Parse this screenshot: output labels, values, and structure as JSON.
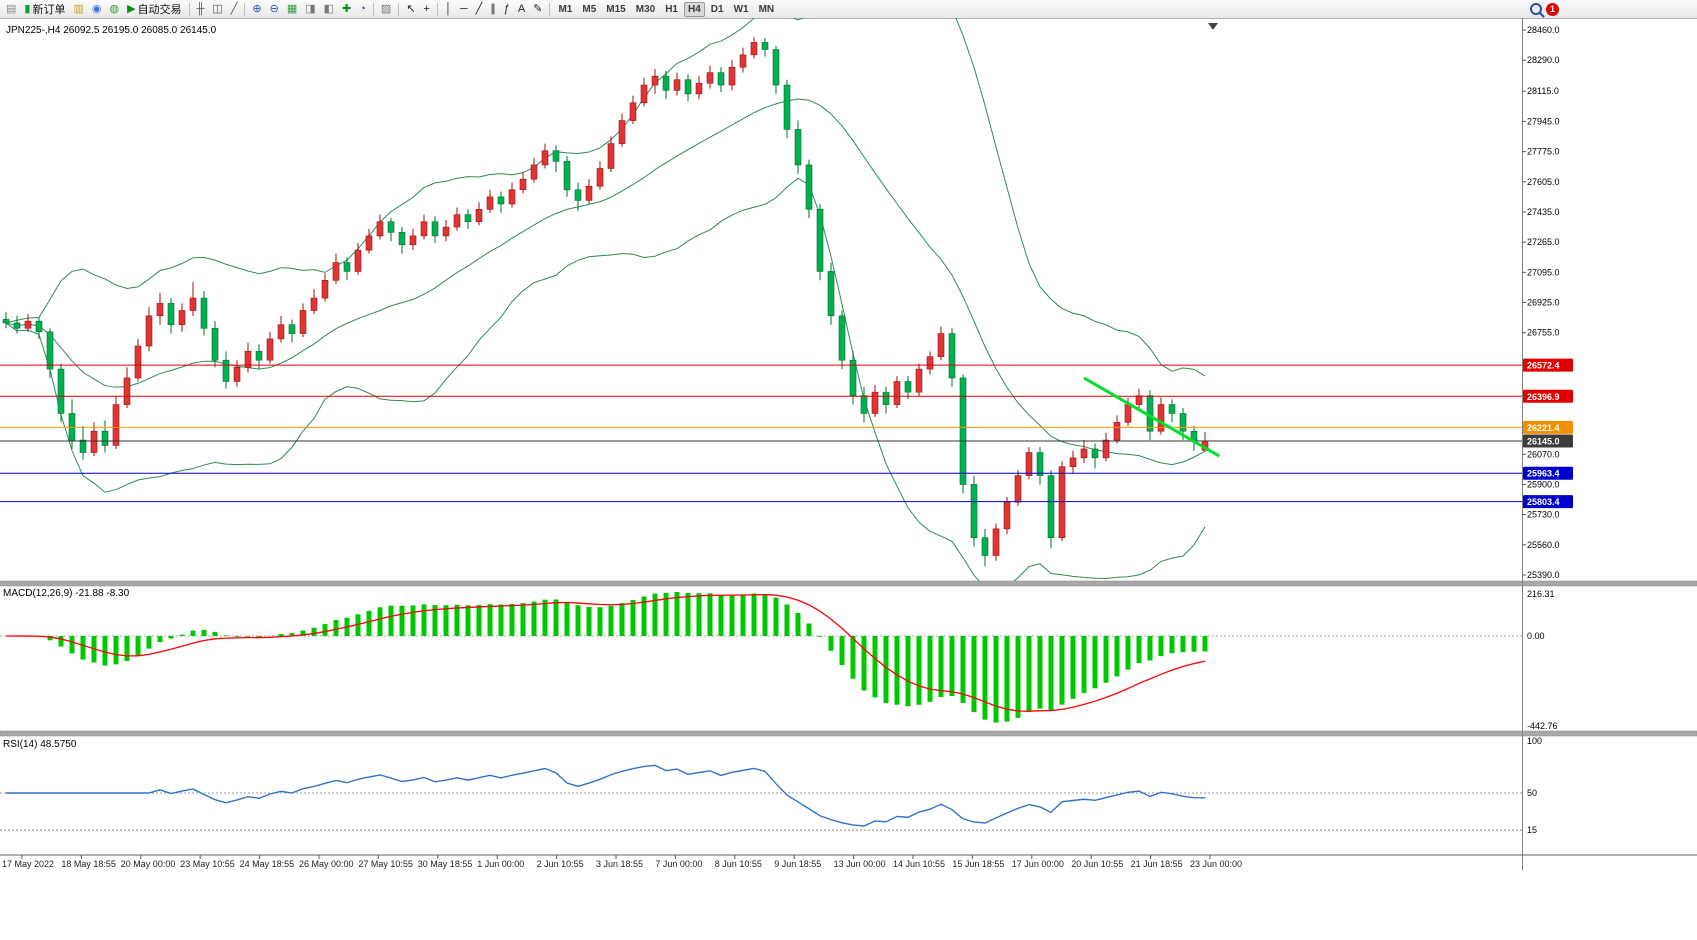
{
  "toolbar": {
    "items": [
      {
        "name": "profiles-button",
        "icon_name": "profiles-icon",
        "glyph": "▤",
        "color": "#8a8a8a"
      },
      {
        "name": "new-order-button",
        "icon_name": "new-order-icon",
        "glyph": "▮",
        "color": "#0aa03c",
        "label": "新订单"
      },
      {
        "name": "depth-of-market-button",
        "icon_name": "book-icon",
        "glyph": "▥",
        "color": "#c8a020"
      },
      {
        "name": "accounts-button",
        "icon_name": "account-icon",
        "glyph": "◉",
        "color": "#3a6fd8"
      },
      {
        "name": "refresh-button",
        "icon_name": "refresh-icon",
        "glyph": "◍",
        "color": "#2fa32f"
      },
      {
        "name": "auto-trading-button",
        "icon_name": "play-icon",
        "glyph": "▶",
        "color": "#0b8f0b",
        "label": "自动交易"
      },
      {
        "sep": true
      },
      {
        "name": "bar-chart-button",
        "icon_name": "bar-chart-icon",
        "glyph": "╫",
        "color": "#555555"
      },
      {
        "name": "candle-chart-button",
        "icon_name": "candle-chart-icon",
        "glyph": "◫",
        "color": "#555555"
      },
      {
        "name": "line-chart-button",
        "icon_name": "line-chart-icon",
        "glyph": "╱",
        "color": "#555555"
      },
      {
        "sep": true
      },
      {
        "name": "zoom-in-button",
        "icon_name": "zoom-in-icon",
        "glyph": "⊕",
        "color": "#2c4f9e"
      },
      {
        "name": "zoom-out-button",
        "icon_name": "zoom-out-icon",
        "glyph": "⊖",
        "color": "#2c4f9e"
      },
      {
        "name": "tile-windows-button",
        "icon_name": "tile-windows-icon",
        "glyph": "▦",
        "color": "#2f9e3f"
      },
      {
        "name": "auto-arrange-button",
        "icon_name": "arrange-icon",
        "glyph": "◨",
        "color": "#777777"
      },
      {
        "name": "chart-shift-button",
        "icon_name": "shift-icon",
        "glyph": "◧",
        "color": "#777777"
      },
      {
        "name": "add-indicator-button",
        "icon_name": "indicator-plus-icon",
        "glyph": "✚",
        "color": "#138a13"
      },
      {
        "name": "period-button",
        "icon_name": "clock-icon",
        "glyph": "◔",
        "color": "#2c4f9e"
      },
      {
        "sep": true
      },
      {
        "name": "templates-button",
        "icon_name": "template-icon",
        "glyph": "▨",
        "color": "#777777"
      },
      {
        "sep": true
      },
      {
        "name": "cursor-button",
        "icon_name": "cursor-icon",
        "glyph": "↖",
        "color": "#222222"
      },
      {
        "name": "crosshair-button",
        "icon_name": "crosshair-icon",
        "glyph": "+",
        "color": "#222222"
      },
      {
        "sep": true
      },
      {
        "name": "vertical-line-button",
        "icon_name": "vertical-line-icon",
        "glyph": "│",
        "color": "#222222"
      },
      {
        "name": "horizontal-line-button",
        "icon_name": "horizontal-line-icon",
        "glyph": "─",
        "color": "#222222"
      },
      {
        "name": "trendline-button",
        "icon_name": "trendline-icon",
        "glyph": "╱",
        "color": "#222222"
      },
      {
        "name": "channel-button",
        "icon_name": "channel-icon",
        "glyph": "∥",
        "color": "#222222"
      },
      {
        "name": "fibonacci-button",
        "icon_name": "fibonacci-icon",
        "glyph": "ƒ",
        "color": "#222222"
      },
      {
        "name": "text-button",
        "icon_name": "text-icon",
        "glyph": "A",
        "color": "#222222"
      },
      {
        "name": "arrows-button",
        "icon_name": "arrow-tools-icon",
        "glyph": "✎",
        "color": "#222222"
      },
      {
        "sep": true
      }
    ],
    "timeframes": [
      {
        "label": "M1"
      },
      {
        "label": "M5"
      },
      {
        "label": "M15"
      },
      {
        "label": "M30"
      },
      {
        "label": "H1"
      },
      {
        "label": "H4",
        "active": true
      },
      {
        "label": "D1"
      },
      {
        "label": "W1"
      },
      {
        "label": "MN"
      }
    ],
    "badge": "1"
  },
  "chart": {
    "symbol_header": "JPN225-,H4  26092.5 26195.0 26085.0 26145.0"
  },
  "macd": {
    "header": "MACD(12,26,9) -21.88 -8.30"
  },
  "rsi": {
    "header": "RSI(14) 48.5750"
  },
  "chart_data": {
    "type": "candlestick",
    "symbol": "JPN225-",
    "timeframe": "H4",
    "ohlc_current": {
      "open": "26092.5",
      "high": "26195.0",
      "low": "26085.0",
      "close": "26145.0"
    },
    "up_color": "#e03535",
    "up_border": "#9c1010",
    "down_color": "#00b050",
    "down_border": "#00702f",
    "price_axis": {
      "min": 25390,
      "max": 28460,
      "tick_labels": [
        "28460.0",
        "28290.0",
        "28115.0",
        "27945.0",
        "27775.0",
        "27605.0",
        "27435.0",
        "27265.0",
        "27095.0",
        "26925.0",
        "26755.0",
        "26070.0",
        "25900.0",
        "25730.0",
        "25560.0",
        "25390.0"
      ]
    },
    "levels": [
      {
        "price": 26572.4,
        "label": "26572.4",
        "color": "#e00000",
        "label_bg": "#e00000"
      },
      {
        "price": 26396.9,
        "label": "26396.9",
        "color": "#e00000",
        "label_bg": "#e00000"
      },
      {
        "price": 26221.4,
        "label": "26221.4",
        "color": "#ff9900",
        "label_bg": "#f09000"
      },
      {
        "price": 26145.0,
        "label": "26145.0",
        "color": "#333333",
        "label_bg": "#3c3c3c"
      },
      {
        "price": 25963.4,
        "label": "25963.4",
        "color": "#0000cc",
        "label_bg": "#0000cc"
      },
      {
        "price": 25803.4,
        "label": "25803.4",
        "color": "#0000cc",
        "label_bg": "#0000cc"
      }
    ],
    "trendline": {
      "from_index": 98,
      "from_price": 26500,
      "to_index": 110.3,
      "to_price": 26060,
      "color": "#00e02a",
      "width": 3
    },
    "bollinger": {
      "period": 20,
      "deviation": 2,
      "color": "#2e8b57"
    },
    "macd": {
      "params": "12,26,9",
      "value": "-21.88",
      "signal_value": "-8.30",
      "axis_labels": [
        "216.31",
        "0.00",
        "-442.76"
      ],
      "histogram_color": "#00c800",
      "signal_color": "#ff0000"
    },
    "rsi": {
      "period": 14,
      "value": "48.5750",
      "axis_labels": [
        "100",
        "50",
        "15"
      ],
      "color": "#2f74c9"
    },
    "time_labels": [
      "17 May 2022",
      "18 May 18:55",
      "20 May 00:00",
      "23 May 10:55",
      "24 May 18:55",
      "26 May 00:00",
      "27 May 10:55",
      "30 May 18:55",
      "1 Jun 00:00",
      "2 Jun 10:55",
      "3 Jun 18:55",
      "7 Jun 00:00",
      "8 Jun 10:55",
      "9 Jun 18:55",
      "13 Jun 00:00",
      "14 Jun 10:55",
      "15 Jun 18:55",
      "17 Jun 00:00",
      "20 Jun 10:55",
      "21 Jun 18:55",
      "23 Jun 00:00"
    ],
    "candles": [
      [
        26830,
        26870,
        26780,
        26810
      ],
      [
        26810,
        26850,
        26750,
        26780
      ],
      [
        26780,
        26860,
        26760,
        26820
      ],
      [
        26820,
        26840,
        26720,
        26760
      ],
      [
        26760,
        26780,
        26500,
        26550
      ],
      [
        26550,
        26580,
        26250,
        26300
      ],
      [
        26300,
        26380,
        26100,
        26150
      ],
      [
        26150,
        26230,
        26040,
        26080
      ],
      [
        26080,
        26250,
        26060,
        26200
      ],
      [
        26200,
        26260,
        26080,
        26120
      ],
      [
        26120,
        26400,
        26100,
        26350
      ],
      [
        26350,
        26560,
        26330,
        26500
      ],
      [
        26500,
        26720,
        26480,
        26680
      ],
      [
        26680,
        26900,
        26650,
        26850
      ],
      [
        26850,
        26980,
        26800,
        26920
      ],
      [
        26920,
        26950,
        26750,
        26800
      ],
      [
        26800,
        26920,
        26760,
        26880
      ],
      [
        26880,
        27040,
        26850,
        26950
      ],
      [
        26950,
        26990,
        26740,
        26780
      ],
      [
        26780,
        26820,
        26560,
        26600
      ],
      [
        26600,
        26650,
        26440,
        26480
      ],
      [
        26480,
        26600,
        26450,
        26560
      ],
      [
        26560,
        26700,
        26530,
        26650
      ],
      [
        26650,
        26690,
        26550,
        26600
      ],
      [
        26600,
        26760,
        26580,
        26720
      ],
      [
        26720,
        26850,
        26700,
        26800
      ],
      [
        26800,
        26830,
        26700,
        26750
      ],
      [
        26750,
        26920,
        26730,
        26880
      ],
      [
        26880,
        27000,
        26860,
        26950
      ],
      [
        26950,
        27090,
        26930,
        27050
      ],
      [
        27050,
        27200,
        27030,
        27150
      ],
      [
        27150,
        27180,
        27050,
        27100
      ],
      [
        27100,
        27260,
        27080,
        27220
      ],
      [
        27220,
        27340,
        27200,
        27300
      ],
      [
        27300,
        27420,
        27280,
        27380
      ],
      [
        27380,
        27400,
        27270,
        27320
      ],
      [
        27320,
        27350,
        27200,
        27250
      ],
      [
        27250,
        27340,
        27220,
        27300
      ],
      [
        27300,
        27420,
        27280,
        27380
      ],
      [
        27380,
        27410,
        27260,
        27300
      ],
      [
        27300,
        27390,
        27270,
        27350
      ],
      [
        27350,
        27460,
        27330,
        27420
      ],
      [
        27420,
        27450,
        27340,
        27380
      ],
      [
        27380,
        27490,
        27360,
        27450
      ],
      [
        27450,
        27560,
        27430,
        27520
      ],
      [
        27520,
        27550,
        27430,
        27480
      ],
      [
        27480,
        27600,
        27460,
        27560
      ],
      [
        27560,
        27660,
        27540,
        27620
      ],
      [
        27620,
        27740,
        27600,
        27700
      ],
      [
        27700,
        27820,
        27680,
        27780
      ],
      [
        27780,
        27810,
        27660,
        27720
      ],
      [
        27720,
        27750,
        27520,
        27560
      ],
      [
        27560,
        27600,
        27440,
        27500
      ],
      [
        27500,
        27620,
        27480,
        27580
      ],
      [
        27580,
        27720,
        27560,
        27680
      ],
      [
        27680,
        27860,
        27660,
        27820
      ],
      [
        27820,
        27990,
        27800,
        27950
      ],
      [
        27950,
        28090,
        27930,
        28050
      ],
      [
        28050,
        28190,
        28030,
        28150
      ],
      [
        28150,
        28240,
        28100,
        28200
      ],
      [
        28200,
        28230,
        28070,
        28120
      ],
      [
        28120,
        28220,
        28090,
        28180
      ],
      [
        28180,
        28210,
        28060,
        28100
      ],
      [
        28100,
        28200,
        28070,
        28160
      ],
      [
        28160,
        28260,
        28130,
        28220
      ],
      [
        28220,
        28250,
        28110,
        28150
      ],
      [
        28150,
        28290,
        28120,
        28250
      ],
      [
        28250,
        28360,
        28220,
        28320
      ],
      [
        28320,
        28420,
        28300,
        28390
      ],
      [
        28390,
        28415,
        28310,
        28350
      ],
      [
        28350,
        28370,
        28100,
        28150
      ],
      [
        28150,
        28180,
        27850,
        27900
      ],
      [
        27900,
        27950,
        27650,
        27700
      ],
      [
        27700,
        27730,
        27400,
        27450
      ],
      [
        27450,
        27480,
        27050,
        27100
      ],
      [
        27100,
        27150,
        26800,
        26850
      ],
      [
        26850,
        26880,
        26550,
        26600
      ],
      [
        26600,
        26650,
        26350,
        26400
      ],
      [
        26400,
        26450,
        26250,
        26300
      ],
      [
        26300,
        26460,
        26280,
        26420
      ],
      [
        26420,
        26450,
        26300,
        26350
      ],
      [
        26350,
        26510,
        26330,
        26480
      ],
      [
        26480,
        26510,
        26380,
        26420
      ],
      [
        26420,
        26580,
        26400,
        26550
      ],
      [
        26550,
        26650,
        26520,
        26620
      ],
      [
        26620,
        26790,
        26600,
        26750
      ],
      [
        26750,
        26780,
        26450,
        26500
      ],
      [
        26500,
        26520,
        25850,
        25900
      ],
      [
        25900,
        25950,
        25550,
        25600
      ],
      [
        25600,
        25650,
        25440,
        25500
      ],
      [
        25500,
        25680,
        25470,
        25650
      ],
      [
        25650,
        25830,
        25620,
        25800
      ],
      [
        25800,
        25980,
        25780,
        25950
      ],
      [
        25950,
        26110,
        25930,
        26080
      ],
      [
        26080,
        26110,
        25900,
        25950
      ],
      [
        25950,
        25980,
        25540,
        25600
      ],
      [
        25600,
        26030,
        25580,
        26000
      ],
      [
        26000,
        26090,
        25960,
        26050
      ],
      [
        26050,
        26150,
        26020,
        26100
      ],
      [
        26100,
        26130,
        25990,
        26050
      ],
      [
        26050,
        26190,
        26030,
        26150
      ],
      [
        26150,
        26290,
        26130,
        26250
      ],
      [
        26250,
        26390,
        26230,
        26350
      ],
      [
        26350,
        26440,
        26320,
        26400
      ],
      [
        26400,
        26430,
        26150,
        26200
      ],
      [
        26200,
        26390,
        26180,
        26350
      ],
      [
        26350,
        26380,
        26250,
        26300
      ],
      [
        26300,
        26330,
        26150,
        26200
      ],
      [
        26200,
        26230,
        26090,
        26150
      ],
      [
        26092.5,
        26195,
        26085,
        26145
      ]
    ]
  }
}
